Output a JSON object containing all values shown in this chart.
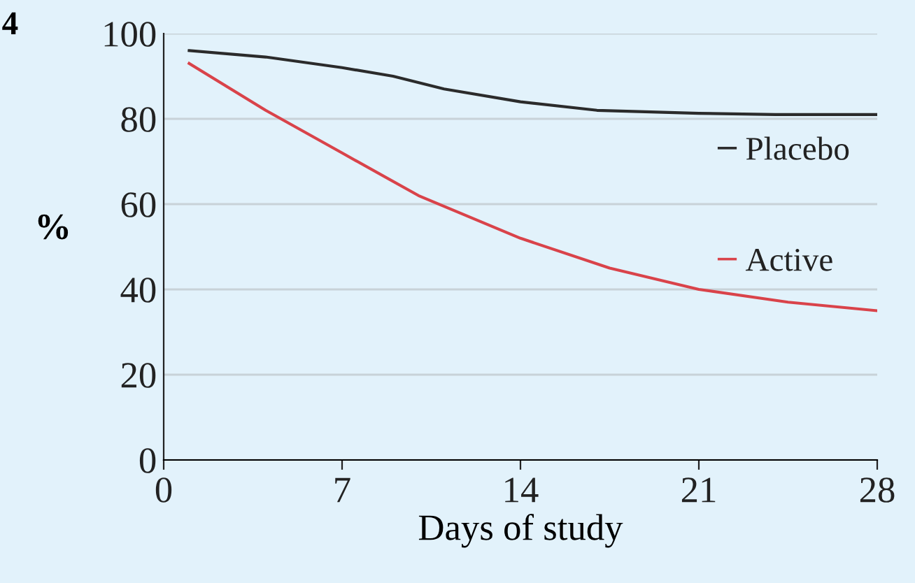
{
  "chart_data": {
    "type": "line",
    "xlabel": "Days of study",
    "ylabel": "%",
    "annotations": [
      "4"
    ],
    "xlim": [
      0,
      28
    ],
    "xticks": [
      0,
      7,
      14,
      21,
      28
    ],
    "ylim": [
      0,
      100
    ],
    "yticks": [
      0,
      20,
      40,
      60,
      80,
      100
    ],
    "grid": "y",
    "legend": "right",
    "marker": "none",
    "line_style": "solid",
    "series": [
      {
        "name": "Placebo",
        "color": "#2b2b2b",
        "x": [
          1,
          4,
          7,
          9,
          11,
          14,
          17,
          21,
          24,
          28
        ],
        "values": [
          96,
          94.5,
          92,
          90,
          87,
          84,
          82,
          81.3,
          81,
          81
        ]
      },
      {
        "name": "Active",
        "color": "#d9434a",
        "x": [
          1,
          4,
          7,
          10,
          14,
          17.5,
          21,
          24.5,
          28
        ],
        "values": [
          93,
          82,
          72,
          62,
          52,
          45,
          40,
          37,
          35
        ]
      }
    ]
  }
}
